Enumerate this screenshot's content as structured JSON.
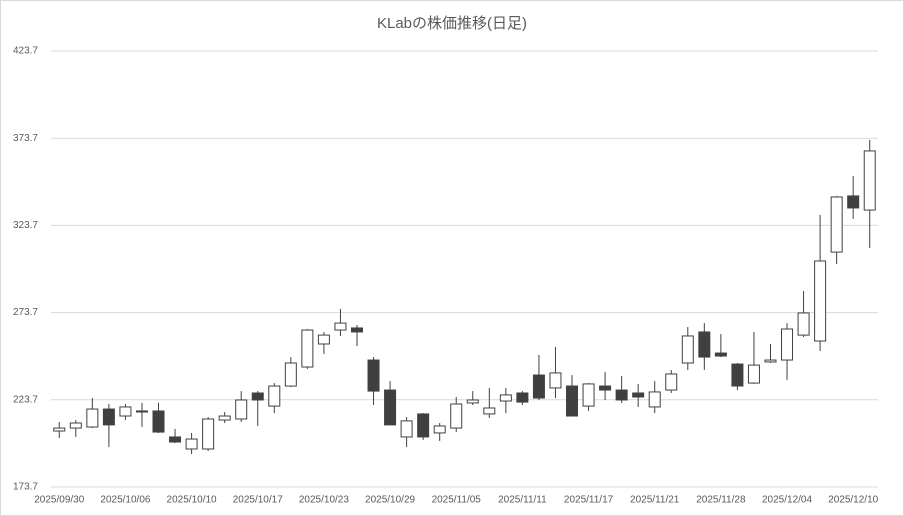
{
  "chart_data": {
    "type": "candlestick",
    "title": "KLabの株価推移(日足)",
    "categories": [
      "2025/09/30",
      null,
      null,
      null,
      "2025/10/06",
      null,
      null,
      null,
      "2025/10/10",
      null,
      null,
      null,
      "2025/10/17",
      null,
      null,
      null,
      "2025/10/23",
      null,
      null,
      null,
      "2025/10/29",
      null,
      null,
      null,
      "2025/11/05",
      null,
      null,
      null,
      "2025/11/11",
      null,
      null,
      null,
      "2025/11/17",
      null,
      null,
      null,
      "2025/11/21",
      null,
      null,
      null,
      "2025/11/28",
      null,
      null,
      null,
      "2025/12/04",
      null,
      null,
      null,
      "2025/12/10",
      null
    ],
    "open": [
      205.8,
      207.5,
      208.1,
      218.4,
      214.4,
      217.3,
      217.3,
      202.4,
      195.5,
      195.5,
      212.1,
      212.7,
      227.6,
      220.1,
      231.6,
      242.5,
      255.7,
      263.7,
      264.9,
      246.5,
      229.3,
      202.4,
      215.6,
      204.7,
      207.5,
      221.9,
      215.6,
      223.0,
      227.6,
      237.9,
      230.5,
      231.6,
      220.1,
      231.6,
      229.3,
      227.6,
      219.6,
      229.3,
      244.8,
      262.6,
      250.5,
      244.2,
      233.3,
      245.4,
      246.5,
      260.8,
      257.4,
      308.4,
      340.6,
      332.5
    ],
    "high": [
      211.0,
      212.1,
      224.7,
      221.3,
      221.3,
      221.9,
      221.9,
      207.0,
      204.7,
      213.8,
      216.7,
      228.7,
      228.7,
      233.3,
      248.2,
      264.3,
      262.6,
      275.8,
      266.6,
      248.2,
      234.5,
      213.8,
      216.1,
      210.4,
      225.3,
      228.7,
      230.5,
      230.5,
      228.7,
      249.4,
      254.0,
      237.9,
      233.3,
      239.6,
      237.3,
      232.8,
      234.5,
      240.8,
      265.4,
      267.7,
      261.4,
      244.8,
      262.6,
      255.7,
      267.7,
      286.1,
      329.7,
      340.6,
      352.0,
      372.7
    ],
    "low": [
      201.8,
      202.4,
      207.5,
      196.6,
      212.1,
      208.1,
      204.7,
      198.9,
      192.6,
      194.3,
      210.4,
      211.0,
      208.7,
      216.1,
      231.0,
      241.4,
      250.0,
      260.3,
      254.5,
      220.7,
      209.3,
      196.6,
      200.6,
      200.1,
      205.2,
      220.7,
      213.3,
      216.1,
      220.7,
      223.6,
      224.7,
      214.4,
      217.3,
      223.6,
      221.9,
      219.6,
      216.1,
      227.6,
      240.8,
      240.8,
      248.2,
      229.3,
      232.8,
      244.8,
      235.1,
      259.7,
      251.7,
      301.6,
      327.4,
      310.7
    ],
    "close": [
      207.5,
      210.4,
      218.4,
      209.3,
      219.6,
      216.7,
      205.2,
      199.5,
      201.2,
      212.7,
      214.4,
      223.6,
      223.6,
      231.6,
      244.8,
      263.7,
      260.8,
      267.7,
      262.6,
      228.7,
      209.3,
      211.6,
      202.4,
      208.7,
      221.3,
      223.6,
      219.0,
      226.5,
      222.4,
      224.7,
      239.1,
      214.4,
      232.8,
      229.3,
      223.6,
      225.3,
      228.2,
      238.5,
      260.3,
      248.2,
      248.8,
      231.6,
      243.6,
      246.5,
      264.3,
      273.5,
      303.3,
      340.0,
      333.7,
      366.4
    ],
    "up_color": "#ffffff",
    "down_color": "#404040",
    "ylim": [
      173.7,
      423.7
    ],
    "yticks": [
      173.7,
      223.7,
      273.7,
      323.7,
      373.7,
      423.7
    ],
    "grid": true
  }
}
